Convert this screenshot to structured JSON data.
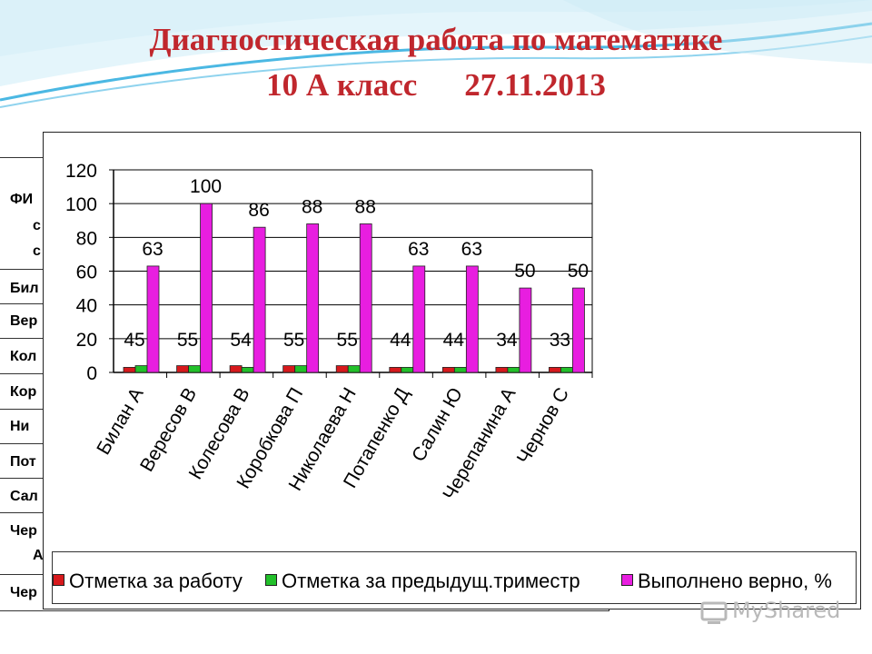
{
  "slide": {
    "title_line1": "Диагностическая работа по математике",
    "title_class": "10 А класс",
    "title_date": "27.11.2013",
    "colors": {
      "title": "#c0272d",
      "wave": "#2aa6d8"
    }
  },
  "background_table": {
    "header_fragments": [
      "ФИ",
      "с",
      "с"
    ],
    "row_fragments": [
      "Бил",
      "Вер",
      "Кол",
      "Кор",
      "Ни",
      "Пот",
      "Сал",
      "Чер",
      "А",
      "Чер"
    ]
  },
  "chart_data": {
    "type": "bar",
    "categories": [
      "Билан А",
      "Вересов В",
      "Колесова В",
      "Коробкова П",
      "Николаева Н",
      "Потапенко Д",
      "Салин Ю",
      "Черепанина А",
      "Чернов С"
    ],
    "series": [
      {
        "name": "Отметка за работу",
        "color": "#d7191c",
        "values": [
          3,
          4,
          4,
          4,
          4,
          3,
          3,
          3,
          3
        ]
      },
      {
        "name": "Отметка за предыдущ.триместр",
        "color": "#22c02a",
        "values": [
          4,
          4,
          3,
          4,
          4,
          3,
          3,
          3,
          3
        ]
      },
      {
        "name": "Выполнено верно, %",
        "color": "#e81ee0",
        "values": [
          63,
          100,
          86,
          88,
          88,
          63,
          63,
          50,
          50
        ]
      }
    ],
    "data_labels": [
      "45",
      "55",
      "54",
      "55",
      "55",
      "44",
      "44",
      "34",
      "33"
    ],
    "percent_labels": [
      "63",
      "100",
      "86",
      "88",
      "88",
      "63",
      "63",
      "50",
      "50"
    ],
    "yticks": [
      "0",
      "20",
      "40",
      "60",
      "80",
      "100",
      "120"
    ],
    "ylim": [
      0,
      120
    ],
    "grid": true,
    "legend_position": "bottom",
    "title": "",
    "xlabel": "",
    "ylabel": ""
  },
  "watermark": {
    "text": "MyShared"
  }
}
